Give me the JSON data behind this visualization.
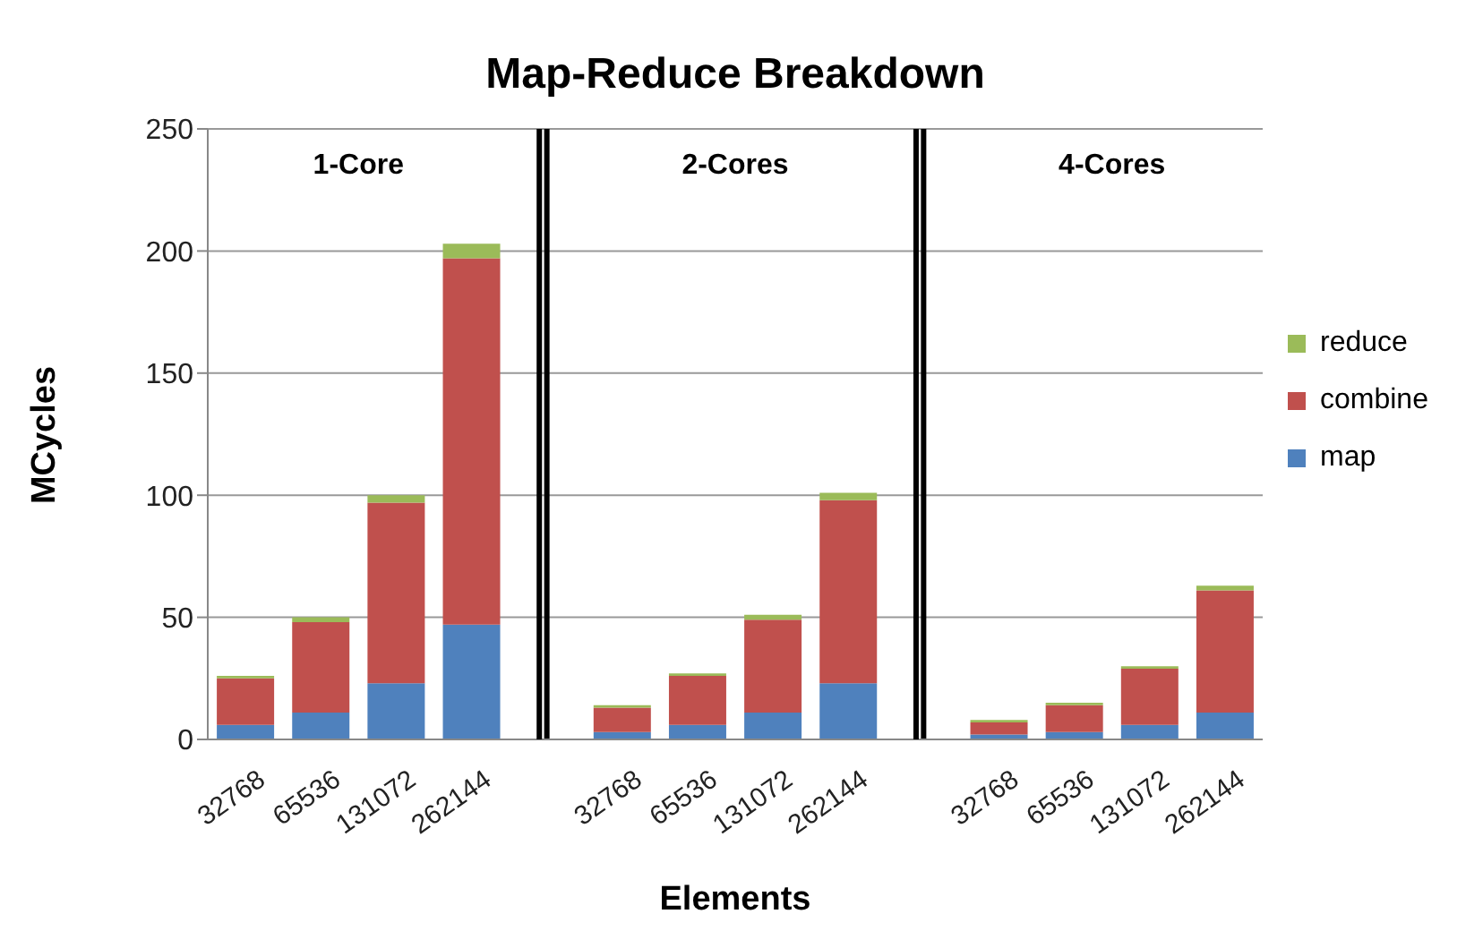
{
  "chart_data": {
    "type": "bar",
    "stacked": true,
    "title": "Map-Reduce Breakdown",
    "xlabel": "Elements",
    "ylabel": "MCycles",
    "categories": [
      "32768",
      "65536",
      "131072",
      "262144",
      null,
      "32768",
      "65536",
      "131072",
      "262144",
      null,
      "32768",
      "65536",
      "131072",
      "262144"
    ],
    "series": [
      {
        "name": "map",
        "color": "#4f81bd",
        "values": [
          6,
          11,
          23,
          47,
          null,
          3,
          6,
          11,
          23,
          null,
          2,
          3,
          6,
          11
        ]
      },
      {
        "name": "combine",
        "color": "#c0504d",
        "values": [
          19,
          37,
          74,
          150,
          null,
          10,
          20,
          38,
          75,
          null,
          5,
          11,
          23,
          50
        ]
      },
      {
        "name": "reduce",
        "color": "#9bbb59",
        "values": [
          1,
          2,
          3,
          6,
          null,
          1,
          1,
          2,
          3,
          null,
          1,
          1,
          1,
          2
        ]
      }
    ],
    "ylim": [
      0,
      250
    ],
    "yticks": [
      0,
      50,
      100,
      150,
      200,
      250
    ],
    "grid": "y",
    "legend": "right",
    "annotations": [
      "1-Core",
      "2-Cores",
      "4-Cores"
    ],
    "ref_lines": [
      {
        "axis": "x",
        "value": null,
        "color": "#000000"
      },
      {
        "axis": "x",
        "value": null,
        "color": "#000000"
      }
    ]
  }
}
